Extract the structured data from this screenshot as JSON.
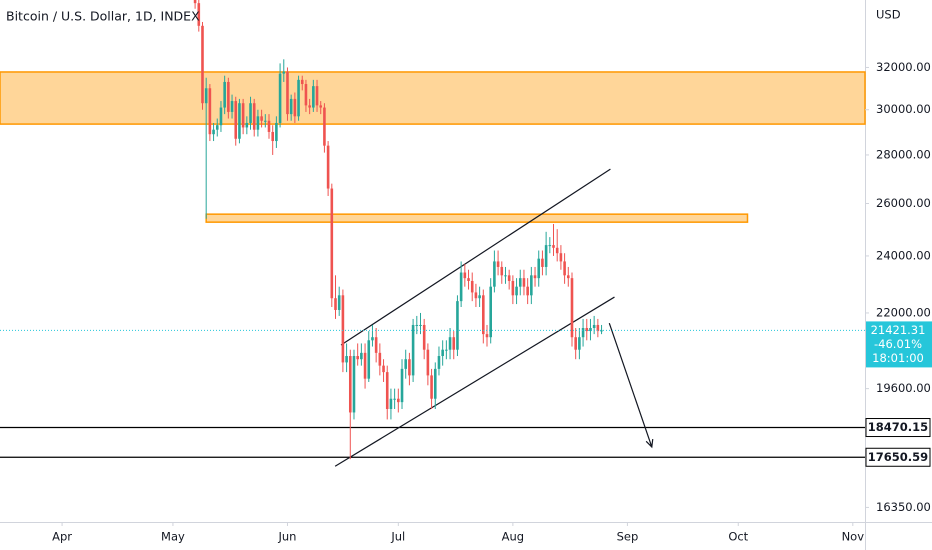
{
  "chart_data": {
    "type": "candlestick",
    "title": "Bitcoin / U.S. Dollar, 1D, INDEX",
    "y_axis_label": "USD",
    "log_scale": true,
    "ylim": [
      15990,
      35470
    ],
    "xlim": [
      -16.8,
      217.3
    ],
    "yticks": [
      {
        "value": 16350,
        "label": "16350.00"
      },
      {
        "value": 19600,
        "label": "19600.00"
      },
      {
        "value": 22000,
        "label": "22000.00"
      },
      {
        "value": 24000,
        "label": "24000.00"
      },
      {
        "value": 26000,
        "label": "26000.00"
      },
      {
        "value": 28000,
        "label": "28000.00"
      },
      {
        "value": 30000,
        "label": "30000.00"
      },
      {
        "value": 32000,
        "label": "32000.00"
      }
    ],
    "xticks": [
      {
        "value": 0,
        "label": "Apr"
      },
      {
        "value": 30,
        "label": "May"
      },
      {
        "value": 61,
        "label": "Jun"
      },
      {
        "value": 91,
        "label": "Jul"
      },
      {
        "value": 122,
        "label": "Aug"
      },
      {
        "value": 153,
        "label": "Sep"
      },
      {
        "value": 183,
        "label": "Oct"
      },
      {
        "value": 214,
        "label": "Nov"
      }
    ],
    "up_color": "#26a69a",
    "down_color": "#ef5350",
    "candles": {
      "x": [
        36,
        37,
        38,
        39,
        40,
        41,
        42,
        43,
        44,
        45,
        46,
        47,
        48,
        49,
        50,
        51,
        52,
        53,
        54,
        55,
        56,
        57,
        58,
        59,
        60,
        61,
        62,
        63,
        64,
        65,
        66,
        67,
        68,
        69,
        70,
        71,
        72,
        73,
        74,
        75,
        76,
        77,
        78,
        79,
        80,
        81,
        82,
        83,
        84,
        85,
        86,
        87,
        88,
        89,
        90,
        91,
        92,
        93,
        94,
        95,
        96,
        97,
        98,
        99,
        100,
        101,
        102,
        103,
        104,
        105,
        106,
        107,
        108,
        109,
        110,
        111,
        112,
        113,
        114,
        115,
        116,
        117,
        118,
        119,
        120,
        121,
        122,
        123,
        124,
        125,
        126,
        127,
        128,
        129,
        130,
        131,
        132,
        133,
        134,
        135,
        136,
        137,
        138,
        139,
        140,
        141,
        142,
        143,
        144,
        145,
        146
      ],
      "open": [
        35500,
        35300,
        34100,
        30300,
        31000,
        28900,
        29100,
        29300,
        30100,
        31300,
        29900,
        30400,
        28700,
        30300,
        29200,
        29400,
        30300,
        29100,
        29700,
        29500,
        29500,
        29000,
        28600,
        29400,
        31700,
        31800,
        29800,
        30500,
        29700,
        31400,
        31200,
        30200,
        30100,
        31100,
        30200,
        30100,
        28400,
        26600,
        22500,
        22100,
        22600,
        20400,
        20600,
        18900,
        20600,
        20500,
        20700,
        19900,
        21100,
        21200,
        20700,
        20300,
        20100,
        19000,
        19300,
        19300,
        19200,
        20200,
        20500,
        20000,
        21600,
        21600,
        21600,
        20800,
        20000,
        19300,
        20200,
        20600,
        20800,
        20800,
        21200,
        20800,
        22400,
        23400,
        23200,
        23100,
        22700,
        22500,
        22600,
        21300,
        21200,
        22900,
        23800,
        23600,
        23300,
        23300,
        23100,
        22600,
        22900,
        23200,
        22900,
        22600,
        23300,
        23200,
        23900,
        23600,
        24400,
        24400,
        24300,
        24100,
        23800,
        23300,
        23200,
        21200,
        20800,
        21200,
        21500,
        21400,
        21500,
        21600,
        21400
      ],
      "high": [
        35800,
        35600,
        34300,
        31500,
        31200,
        29400,
        29600,
        30400,
        31600,
        31500,
        30700,
        30600,
        30500,
        30500,
        29700,
        30600,
        30500,
        30000,
        30000,
        29800,
        29800,
        29300,
        29700,
        32200,
        32400,
        32000,
        30700,
        30800,
        31600,
        31600,
        31400,
        30500,
        31400,
        31400,
        30400,
        30300,
        28600,
        26800,
        23300,
        22900,
        22800,
        21000,
        20800,
        20800,
        21000,
        21000,
        21000,
        21400,
        21600,
        21500,
        21000,
        20500,
        20300,
        19600,
        19600,
        19600,
        20500,
        20800,
        20700,
        21800,
        21900,
        22000,
        21800,
        21000,
        20200,
        20400,
        20900,
        21100,
        21100,
        21500,
        21400,
        22600,
        23800,
        23700,
        23500,
        23400,
        23000,
        22900,
        22800,
        21600,
        23200,
        24200,
        24200,
        23800,
        23600,
        23500,
        23300,
        23200,
        23500,
        23500,
        23200,
        23600,
        23600,
        24200,
        24200,
        24900,
        24700,
        25200,
        25000,
        24400,
        24100,
        23600,
        23400,
        21500,
        21500,
        21800,
        21800,
        21800,
        21900,
        21800,
        21600
      ],
      "low": [
        35000,
        33800,
        30000,
        25400,
        28600,
        28600,
        28800,
        29000,
        29800,
        29600,
        29600,
        28400,
        28500,
        28900,
        28900,
        29100,
        28800,
        28800,
        29200,
        29200,
        28700,
        28000,
        28300,
        29200,
        31300,
        29500,
        29500,
        29400,
        29500,
        30900,
        29900,
        29800,
        29900,
        29900,
        29800,
        28100,
        26300,
        22200,
        21800,
        21900,
        20100,
        20100,
        17600,
        18700,
        20300,
        20300,
        19600,
        19800,
        20900,
        20400,
        20000,
        19800,
        18700,
        18700,
        19000,
        18900,
        19000,
        19900,
        19700,
        19800,
        21300,
        21300,
        20500,
        19700,
        19000,
        19000,
        20000,
        20300,
        20500,
        20500,
        20500,
        20600,
        22200,
        22900,
        22800,
        22400,
        22200,
        22200,
        21000,
        20900,
        21000,
        22700,
        23300,
        23000,
        23000,
        22800,
        22300,
        22300,
        22600,
        22600,
        22300,
        22300,
        22900,
        22900,
        23300,
        23300,
        24100,
        24000,
        23800,
        23500,
        23000,
        22900,
        20900,
        20500,
        20500,
        20900,
        21100,
        21100,
        21300,
        21200,
        21300
      ],
      "close": [
        35300,
        34100,
        30300,
        31000,
        28900,
        29100,
        29300,
        30100,
        31300,
        29900,
        30400,
        28700,
        30300,
        29200,
        29400,
        30300,
        29100,
        29700,
        29500,
        29500,
        29000,
        28600,
        29400,
        31700,
        31800,
        29800,
        30500,
        29700,
        31400,
        31200,
        30200,
        30100,
        31100,
        30200,
        30100,
        28400,
        26600,
        22500,
        22100,
        22600,
        20400,
        20600,
        18900,
        20600,
        20500,
        20700,
        19900,
        21100,
        21200,
        20700,
        20300,
        20100,
        19000,
        19300,
        19300,
        19200,
        20200,
        20500,
        20000,
        21600,
        21600,
        21600,
        20800,
        20000,
        19300,
        20200,
        20600,
        20800,
        20800,
        21200,
        20800,
        22400,
        23400,
        23200,
        23100,
        22700,
        22500,
        22600,
        21300,
        21200,
        22900,
        23800,
        23600,
        23300,
        23300,
        23100,
        22600,
        22900,
        23200,
        22900,
        22600,
        23300,
        23200,
        23900,
        23600,
        24400,
        24400,
        24300,
        24100,
        23800,
        23300,
        23200,
        21200,
        20800,
        21200,
        21500,
        21400,
        21500,
        21600,
        21400,
        21421.31
      ]
    },
    "last_price": 21421.31,
    "last_change": "-46.01%",
    "countdown": "18:01:00",
    "last_price_color": "#26c6da",
    "levels": [
      18470.15,
      17650.59
    ],
    "level_color": "#000000",
    "zones": [
      {
        "xlim": [
          -16.8,
          217.3
        ],
        "ylim": [
          29350,
          31780
        ]
      },
      {
        "xlim": [
          39,
          185.5
        ],
        "ylim": [
          25270,
          25580
        ]
      }
    ],
    "zone_color": "#ff9800",
    "trend_lines": [
      {
        "x": [
          73.9,
          149.5
        ],
        "y": [
          17410,
          22540
        ]
      },
      {
        "x": [
          75.5,
          148.4
        ],
        "y": [
          20950,
          27400
        ]
      }
    ],
    "arrow": {
      "x": [
        148.1,
        159.6
      ],
      "y": [
        21660,
        17930
      ]
    }
  }
}
